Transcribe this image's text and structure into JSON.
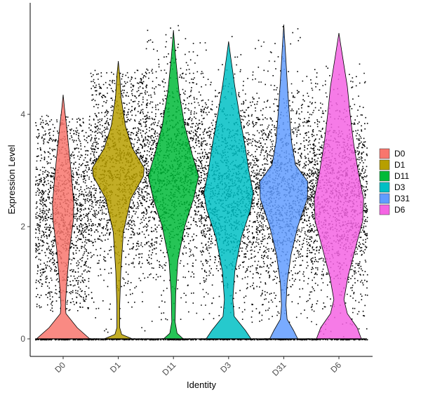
{
  "chart_data": {
    "type": "violin",
    "xlabel": "Identity",
    "ylabel": "Expression Level",
    "ylim": [
      -0.4,
      5.85
    ],
    "yticks": [
      0,
      2,
      4
    ],
    "grid": false,
    "legend_position": "right",
    "categories": [
      "D0",
      "D1",
      "D11",
      "D3",
      "D31",
      "D6"
    ],
    "series": [
      {
        "name": "D0",
        "color": "#F8766D",
        "jitter_min": 0.5,
        "jitter_max": 4.0,
        "violin_top": 4.35,
        "jitter_mode": 2.3,
        "profile": [
          [
            0,
            0.95
          ],
          [
            0.2,
            0.5
          ],
          [
            0.45,
            0.1
          ],
          [
            0.6,
            0.08
          ],
          [
            1.0,
            0.13
          ],
          [
            1.6,
            0.23
          ],
          [
            2.1,
            0.36
          ],
          [
            2.4,
            0.38
          ],
          [
            2.9,
            0.3
          ],
          [
            3.4,
            0.2
          ],
          [
            3.8,
            0.12
          ],
          [
            4.1,
            0.05
          ],
          [
            4.35,
            0.0
          ]
        ]
      },
      {
        "name": "D1",
        "color": "#B79F00",
        "jitter_min": 0.1,
        "jitter_max": 4.8,
        "violin_top": 4.95,
        "jitter_mode": 3.0,
        "profile": [
          [
            0,
            0.5
          ],
          [
            0.08,
            0.12
          ],
          [
            0.2,
            0.05
          ],
          [
            0.6,
            0.05
          ],
          [
            1.2,
            0.09
          ],
          [
            1.9,
            0.18
          ],
          [
            2.5,
            0.45
          ],
          [
            2.9,
            0.9
          ],
          [
            3.05,
            0.92
          ],
          [
            3.4,
            0.5
          ],
          [
            3.8,
            0.25
          ],
          [
            4.3,
            0.1
          ],
          [
            4.7,
            0.05
          ],
          [
            4.95,
            0.0
          ]
        ]
      },
      {
        "name": "D11",
        "color": "#00BA38",
        "jitter_min": 0.3,
        "jitter_max": 5.6,
        "violin_top": 5.5,
        "jitter_mode": 3.0,
        "profile": [
          [
            0,
            0.35
          ],
          [
            0.1,
            0.13
          ],
          [
            0.3,
            0.06
          ],
          [
            0.8,
            0.08
          ],
          [
            1.4,
            0.16
          ],
          [
            2.0,
            0.4
          ],
          [
            2.5,
            0.72
          ],
          [
            2.9,
            0.9
          ],
          [
            3.3,
            0.66
          ],
          [
            3.8,
            0.4
          ],
          [
            4.4,
            0.2
          ],
          [
            5.0,
            0.08
          ],
          [
            5.5,
            0.0
          ]
        ]
      },
      {
        "name": "D3",
        "color": "#00BFC4",
        "jitter_min": 0.3,
        "jitter_max": 5.4,
        "violin_top": 5.3,
        "jitter_mode": 2.7,
        "profile": [
          [
            0,
            0.8
          ],
          [
            0.15,
            0.6
          ],
          [
            0.4,
            0.2
          ],
          [
            0.7,
            0.15
          ],
          [
            1.2,
            0.22
          ],
          [
            1.8,
            0.45
          ],
          [
            2.3,
            0.78
          ],
          [
            2.6,
            0.88
          ],
          [
            3.0,
            0.72
          ],
          [
            3.4,
            0.6
          ],
          [
            3.9,
            0.42
          ],
          [
            4.5,
            0.22
          ],
          [
            5.0,
            0.08
          ],
          [
            5.3,
            0.0
          ]
        ]
      },
      {
        "name": "D31",
        "color": "#619CFF",
        "jitter_min": 0.3,
        "jitter_max": 5.6,
        "violin_top": 5.6,
        "jitter_mode": 2.6,
        "profile": [
          [
            0,
            0.5
          ],
          [
            0.15,
            0.35
          ],
          [
            0.35,
            0.12
          ],
          [
            0.6,
            0.08
          ],
          [
            1.0,
            0.12
          ],
          [
            1.5,
            0.26
          ],
          [
            2.0,
            0.5
          ],
          [
            2.5,
            0.84
          ],
          [
            2.8,
            0.86
          ],
          [
            3.1,
            0.42
          ],
          [
            3.5,
            0.28
          ],
          [
            4.0,
            0.2
          ],
          [
            4.6,
            0.12
          ],
          [
            5.2,
            0.05
          ],
          [
            5.6,
            0.0
          ]
        ]
      },
      {
        "name": "D6",
        "color": "#F564E3",
        "jitter_min": 0.0,
        "jitter_max": 5.0,
        "violin_top": 5.45,
        "jitter_mode": 2.5,
        "profile": [
          [
            0,
            0.8
          ],
          [
            0.2,
            0.65
          ],
          [
            0.45,
            0.3
          ],
          [
            0.7,
            0.18
          ],
          [
            1.1,
            0.32
          ],
          [
            1.6,
            0.58
          ],
          [
            2.1,
            0.85
          ],
          [
            2.5,
            0.88
          ],
          [
            3.0,
            0.68
          ],
          [
            3.5,
            0.52
          ],
          [
            4.0,
            0.4
          ],
          [
            4.5,
            0.3
          ],
          [
            5.0,
            0.14
          ],
          [
            5.45,
            0.0
          ]
        ]
      }
    ]
  }
}
